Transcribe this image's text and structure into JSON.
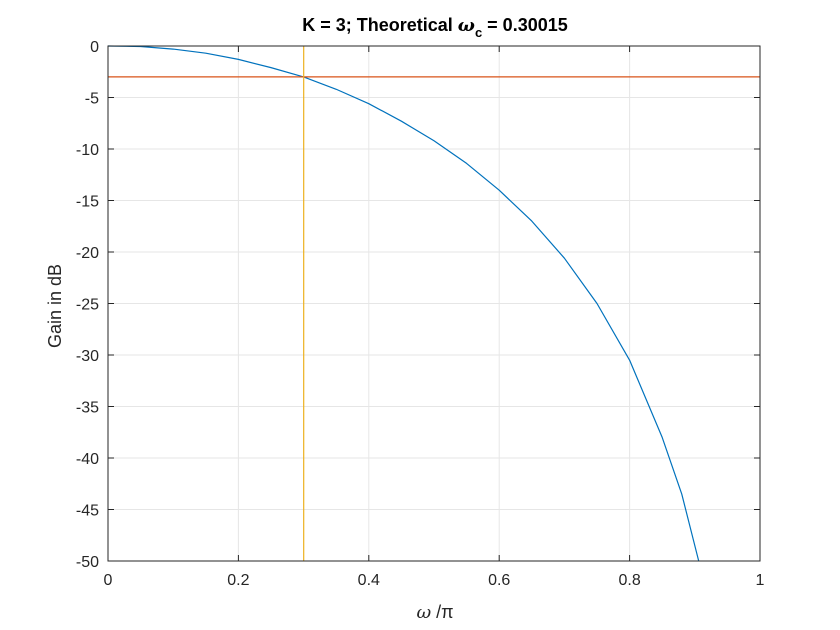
{
  "chart_data": {
    "type": "line",
    "title": {
      "prefix": "K = 3; Theoretical ",
      "symbol": "ω",
      "subscript": "c",
      "suffix": " = 0.30015"
    },
    "xlabel": {
      "symbol": "ω",
      "rest": " /π"
    },
    "ylabel": "Gain in dB",
    "xlim": [
      0,
      1
    ],
    "ylim": [
      -50,
      0
    ],
    "xticks": [
      0,
      0.2,
      0.4,
      0.6,
      0.8,
      1
    ],
    "xtick_labels": [
      "0",
      "0.2",
      "0.4",
      "0.6",
      "0.8",
      "1"
    ],
    "yticks": [
      0,
      -5,
      -10,
      -15,
      -20,
      -25,
      -30,
      -35,
      -40,
      -45,
      -50
    ],
    "ytick_labels": [
      "0",
      "-5",
      "-10",
      "-15",
      "-20",
      "-25",
      "-30",
      "-35",
      "-40",
      "-45",
      "-50"
    ],
    "grid": true,
    "series": [
      {
        "color": "#0072BD",
        "x": [
          0,
          0.05,
          0.1,
          0.15,
          0.2,
          0.25,
          0.3,
          0.35,
          0.4,
          0.45,
          0.5,
          0.55,
          0.6,
          0.65,
          0.7,
          0.75,
          0.8,
          0.85,
          0.88,
          0.906
        ],
        "y": [
          0,
          -0.05,
          -0.3,
          -0.7,
          -1.3,
          -2.1,
          -3.0,
          -4.2,
          -5.6,
          -7.3,
          -9.2,
          -11.4,
          -14.0,
          -17.0,
          -20.6,
          -25.0,
          -30.5,
          -38.0,
          -43.5,
          -50
        ]
      },
      {
        "color": "#D95319",
        "x": [
          0,
          1
        ],
        "y": [
          -3,
          -3
        ]
      },
      {
        "color": "#EDB120",
        "x": [
          0.30015,
          0.30015
        ],
        "y": [
          -50,
          0
        ]
      }
    ]
  }
}
